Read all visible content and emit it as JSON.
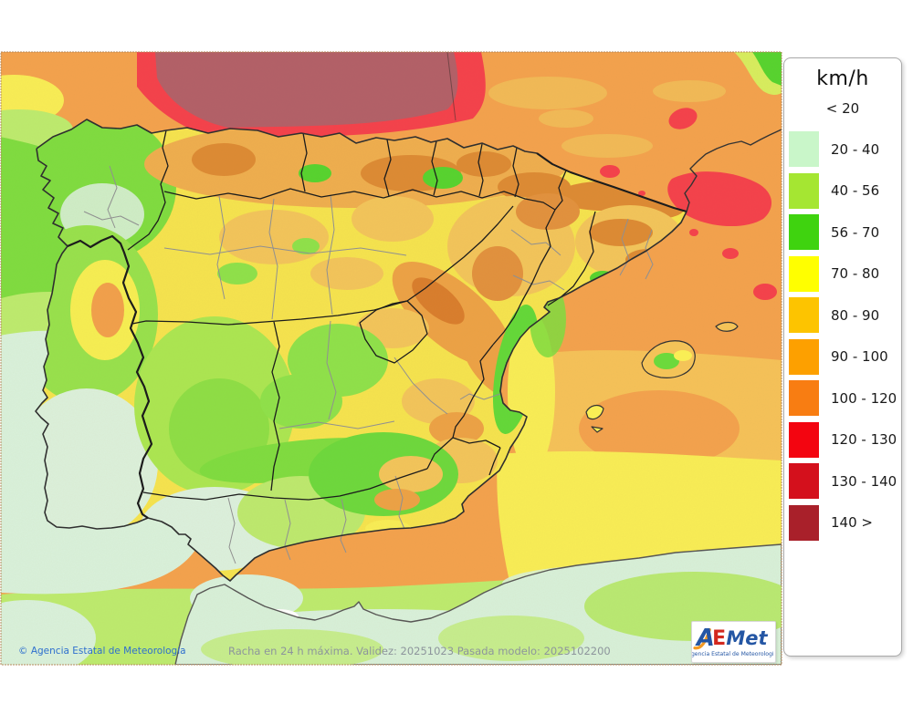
{
  "legend": {
    "title": "km/h",
    "no_swatch_label": "< 20",
    "entries": [
      {
        "label": "20 - 40",
        "color": "#c9f6c9"
      },
      {
        "label": "40 - 56",
        "color": "#a5e632"
      },
      {
        "label": "56 - 70",
        "color": "#3fd30f"
      },
      {
        "label": "70 - 80",
        "color": "#ffff00"
      },
      {
        "label": "80 - 90",
        "color": "#fdc400"
      },
      {
        "label": "90 - 100",
        "color": "#fda000"
      },
      {
        "label": "100 - 120",
        "color": "#f87d12"
      },
      {
        "label": "120 - 130",
        "color": "#f30510"
      },
      {
        "label": "130 - 140",
        "color": "#d4101c"
      },
      {
        "label": "140 >",
        "color": "#a9202a"
      }
    ]
  },
  "footer": {
    "copyright": "© Agencia Estatal de Meteorología",
    "caption": "Racha en 24 h máxima. Validez: 20251023 Pasada modelo: 2025102200"
  },
  "logo": {
    "letter_a": "A",
    "letter_e": "E",
    "letter_met": "Met",
    "subtitle": "Agencia Estatal de Meteorología",
    "blue": "#2456a4",
    "red": "#d2281e",
    "orange": "#f59a23"
  },
  "map": {
    "area": "Iberian Peninsula wind gust field",
    "palette": {
      "sea_orange": "#f4a24d",
      "sea_golden": "#f6c258",
      "sea_yellow": "#f9ee55",
      "sea_light_green": "#bdec6e",
      "sea_mint": "#d9f2dc",
      "sea_green": "#7edd3f",
      "storm_red": "#f5404b",
      "storm_maroon": "#b25f68",
      "land_yellow": "#f6e44e",
      "land_golden": "#f3c55a",
      "land_orange_ridge": "#dd8a33",
      "land_green": "#55d42e"
    }
  }
}
